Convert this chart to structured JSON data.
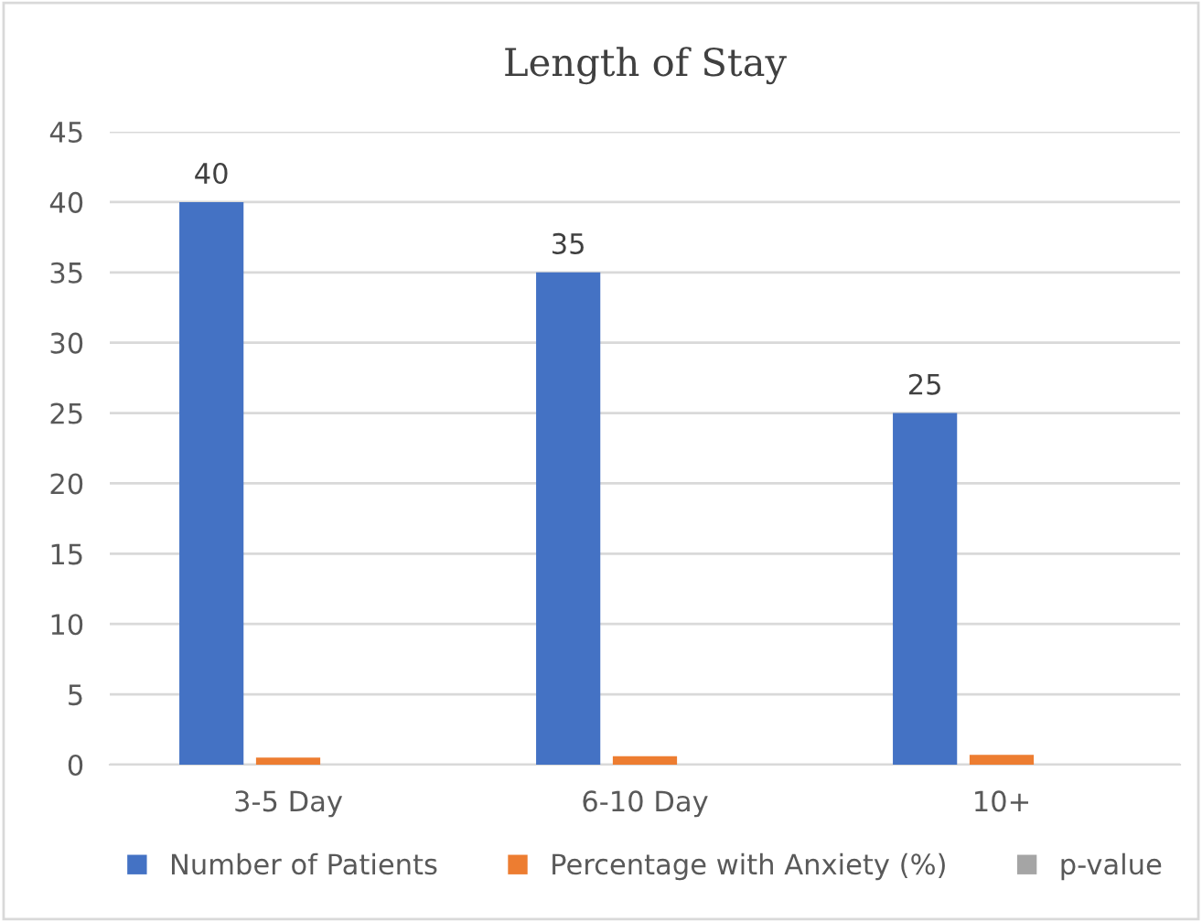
{
  "chart_data": {
    "type": "bar",
    "title": "Length of Stay",
    "categories": [
      "3-5 Day",
      "6-10 Day",
      "10+"
    ],
    "series": [
      {
        "name": "Number of Patients",
        "color": "#4472c4",
        "values": [
          40,
          35,
          25
        ],
        "value_labels": [
          "40",
          "35",
          "25"
        ]
      },
      {
        "name": "Percentage with Anxiety (%)",
        "color": "#ed7d31",
        "values": [
          0.5,
          0.6,
          0.7
        ]
      },
      {
        "name": "p-value",
        "color": "#a5a5a5",
        "values": [
          0,
          0,
          0
        ]
      }
    ],
    "ylim": [
      0,
      45
    ],
    "yticks": [
      0,
      5,
      10,
      15,
      20,
      25,
      30,
      35,
      40,
      45
    ],
    "grid": "y",
    "legend": "bottom"
  }
}
